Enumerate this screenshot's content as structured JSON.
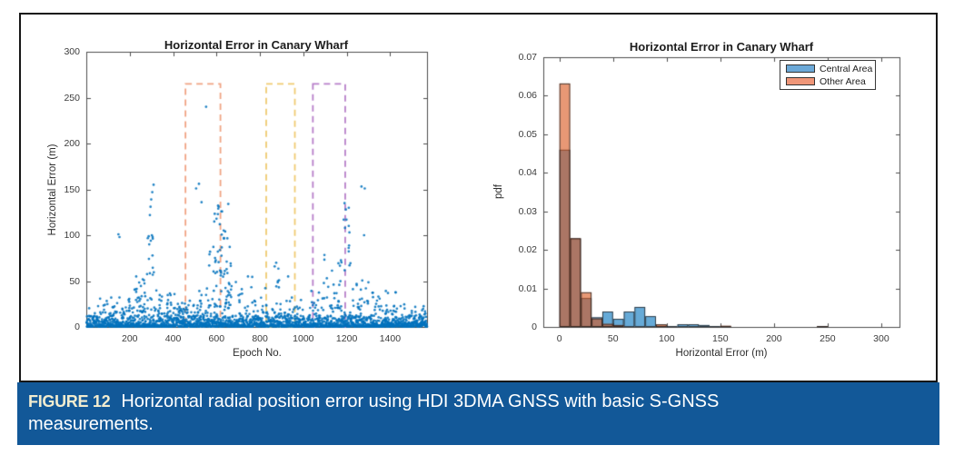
{
  "figure": {
    "label": "FIGURE 12",
    "caption": "Horizontal radial position error using HDI 3DMA GNSS with basic S-GNSS measurements.",
    "bar_color": "#125898",
    "label_color": "#F2ECCF",
    "caption_color": "#FFFFFF"
  },
  "chart_data": [
    {
      "type": "scatter",
      "title": "Horizontal Error in Canary Wharf",
      "xlabel": "Epoch No.",
      "ylabel": "Horizontal Error (m)",
      "xlim": [
        0,
        1570
      ],
      "ylim": [
        0,
        300
      ],
      "xticks": [
        200,
        400,
        600,
        800,
        1000,
        1200,
        1400
      ],
      "yticks": [
        0,
        50,
        100,
        150,
        200,
        250,
        300
      ],
      "marker_color": "#0072BD",
      "axis_color": "#4d4d4d",
      "grid": false,
      "highlight_regions": [
        {
          "name": "region-1",
          "x0": 457,
          "x1": 618,
          "y0": 0,
          "y1": 265,
          "color": "#F0A383"
        },
        {
          "name": "region-2",
          "x0": 829,
          "x1": 961,
          "y0": 0,
          "y1": 265,
          "color": "#EFCB72"
        },
        {
          "name": "region-3",
          "x0": 1044,
          "x1": 1193,
          "y0": 0,
          "y1": 265,
          "color": "#B77FC9"
        }
      ],
      "point_generation": {
        "seed": 1234,
        "baseline": [
          {
            "count": 1570,
            "x0": 1,
            "x1": 1570,
            "ybase": 0.4,
            "ymax": 12,
            "pow": 2.8
          },
          {
            "count": 480,
            "x0": 1,
            "x1": 1570,
            "ybase": 2,
            "ymax": 21,
            "pow": 2.2
          }
        ],
        "clusters": [
          [
            60,
            200,
            22,
            14,
            34
          ],
          [
            200,
            275,
            26,
            15,
            55
          ],
          [
            278,
            325,
            16,
            20,
            100
          ],
          [
            330,
            430,
            30,
            14,
            38
          ],
          [
            430,
            490,
            14,
            14,
            30
          ],
          [
            490,
            565,
            18,
            15,
            42
          ],
          [
            565,
            670,
            60,
            22,
            95
          ],
          [
            585,
            655,
            12,
            95,
            140
          ],
          [
            680,
            780,
            16,
            14,
            55
          ],
          [
            800,
            905,
            16,
            14,
            48
          ],
          [
            862,
            892,
            4,
            48,
            72
          ],
          [
            910,
            1005,
            10,
            12,
            32
          ],
          [
            1035,
            1080,
            8,
            18,
            40
          ],
          [
            1085,
            1180,
            26,
            20,
            92
          ],
          [
            1183,
            1218,
            10,
            60,
            138
          ],
          [
            1225,
            1265,
            10,
            18,
            50
          ],
          [
            1270,
            1310,
            8,
            25,
            60
          ],
          [
            1315,
            1355,
            10,
            18,
            58
          ],
          [
            1360,
            1430,
            12,
            14,
            40
          ],
          [
            1440,
            1565,
            10,
            10,
            26
          ]
        ],
        "outliers": [
          [
            552,
            240
          ],
          [
            506,
            151
          ],
          [
            519,
            156
          ],
          [
            531,
            136
          ],
          [
            310,
            155
          ],
          [
            304,
            147
          ],
          [
            299,
            139
          ],
          [
            296,
            131
          ],
          [
            293,
            122
          ],
          [
            302,
            100
          ],
          [
            297,
            94
          ],
          [
            290,
            90
          ],
          [
            148,
            101
          ],
          [
            153,
            98
          ],
          [
            610,
            131
          ],
          [
            622,
            126
          ],
          [
            600,
            118
          ],
          [
            615,
            112
          ],
          [
            640,
            104
          ],
          [
            1190,
            135
          ],
          [
            1196,
            128
          ],
          [
            1186,
            117
          ],
          [
            1192,
            108
          ],
          [
            1268,
            153
          ],
          [
            1283,
            151
          ],
          [
            1280,
            100
          ],
          [
            1390,
            37
          ],
          [
            875,
            70
          ],
          [
            868,
            66
          ],
          [
            930,
            55
          ],
          [
            745,
            55
          ],
          [
            230,
            55
          ],
          [
            260,
            52
          ]
        ]
      }
    },
    {
      "type": "histogram",
      "title": "Horizontal Error in Canary Wharf",
      "xlabel": "Horizontal Error (m)",
      "ylabel": "pdf",
      "xlim": [
        -15,
        317
      ],
      "ylim": [
        0,
        0.07
      ],
      "xticks": [
        0,
        50,
        100,
        150,
        200,
        250,
        300
      ],
      "yticks": [
        0,
        0.01,
        0.02,
        0.03,
        0.04,
        0.05,
        0.06,
        0.07
      ],
      "ytick_labels": [
        "0",
        "0.01",
        "0.02",
        "0.03",
        "0.04",
        "0.05",
        "0.06",
        "0.07"
      ],
      "axis_color": "#4d4d4d",
      "grid": false,
      "bin_start": 0,
      "bin_width": 10,
      "edge_color": "#1e1e1e",
      "legend_position": "northeast",
      "series": [
        {
          "name": "Central Area",
          "color": "#0072BD",
          "alpha": 0.6,
          "legend_swatch": "#6CA9D8",
          "values": [
            0.046,
            0.023,
            0.0075,
            0.0025,
            0.004,
            0.0021,
            0.004,
            0.0052,
            0.0028,
            0.0003,
            0.0002,
            0.0007,
            0.0007,
            0.0005,
            0.0002,
            0.0002,
            0,
            0,
            0,
            0,
            0,
            0,
            0,
            0,
            0.0002
          ]
        },
        {
          "name": "Other Area",
          "color": "#D95319",
          "alpha": 0.6,
          "legend_swatch": "#EF9678",
          "values": [
            0.0632,
            0.023,
            0.009,
            0.0022,
            0.0008,
            0.0005,
            0,
            0,
            0,
            0.0007,
            0,
            0,
            0,
            0,
            0,
            0.0003,
            0,
            0,
            0,
            0,
            0,
            0,
            0,
            0,
            0.0002
          ]
        }
      ]
    }
  ]
}
